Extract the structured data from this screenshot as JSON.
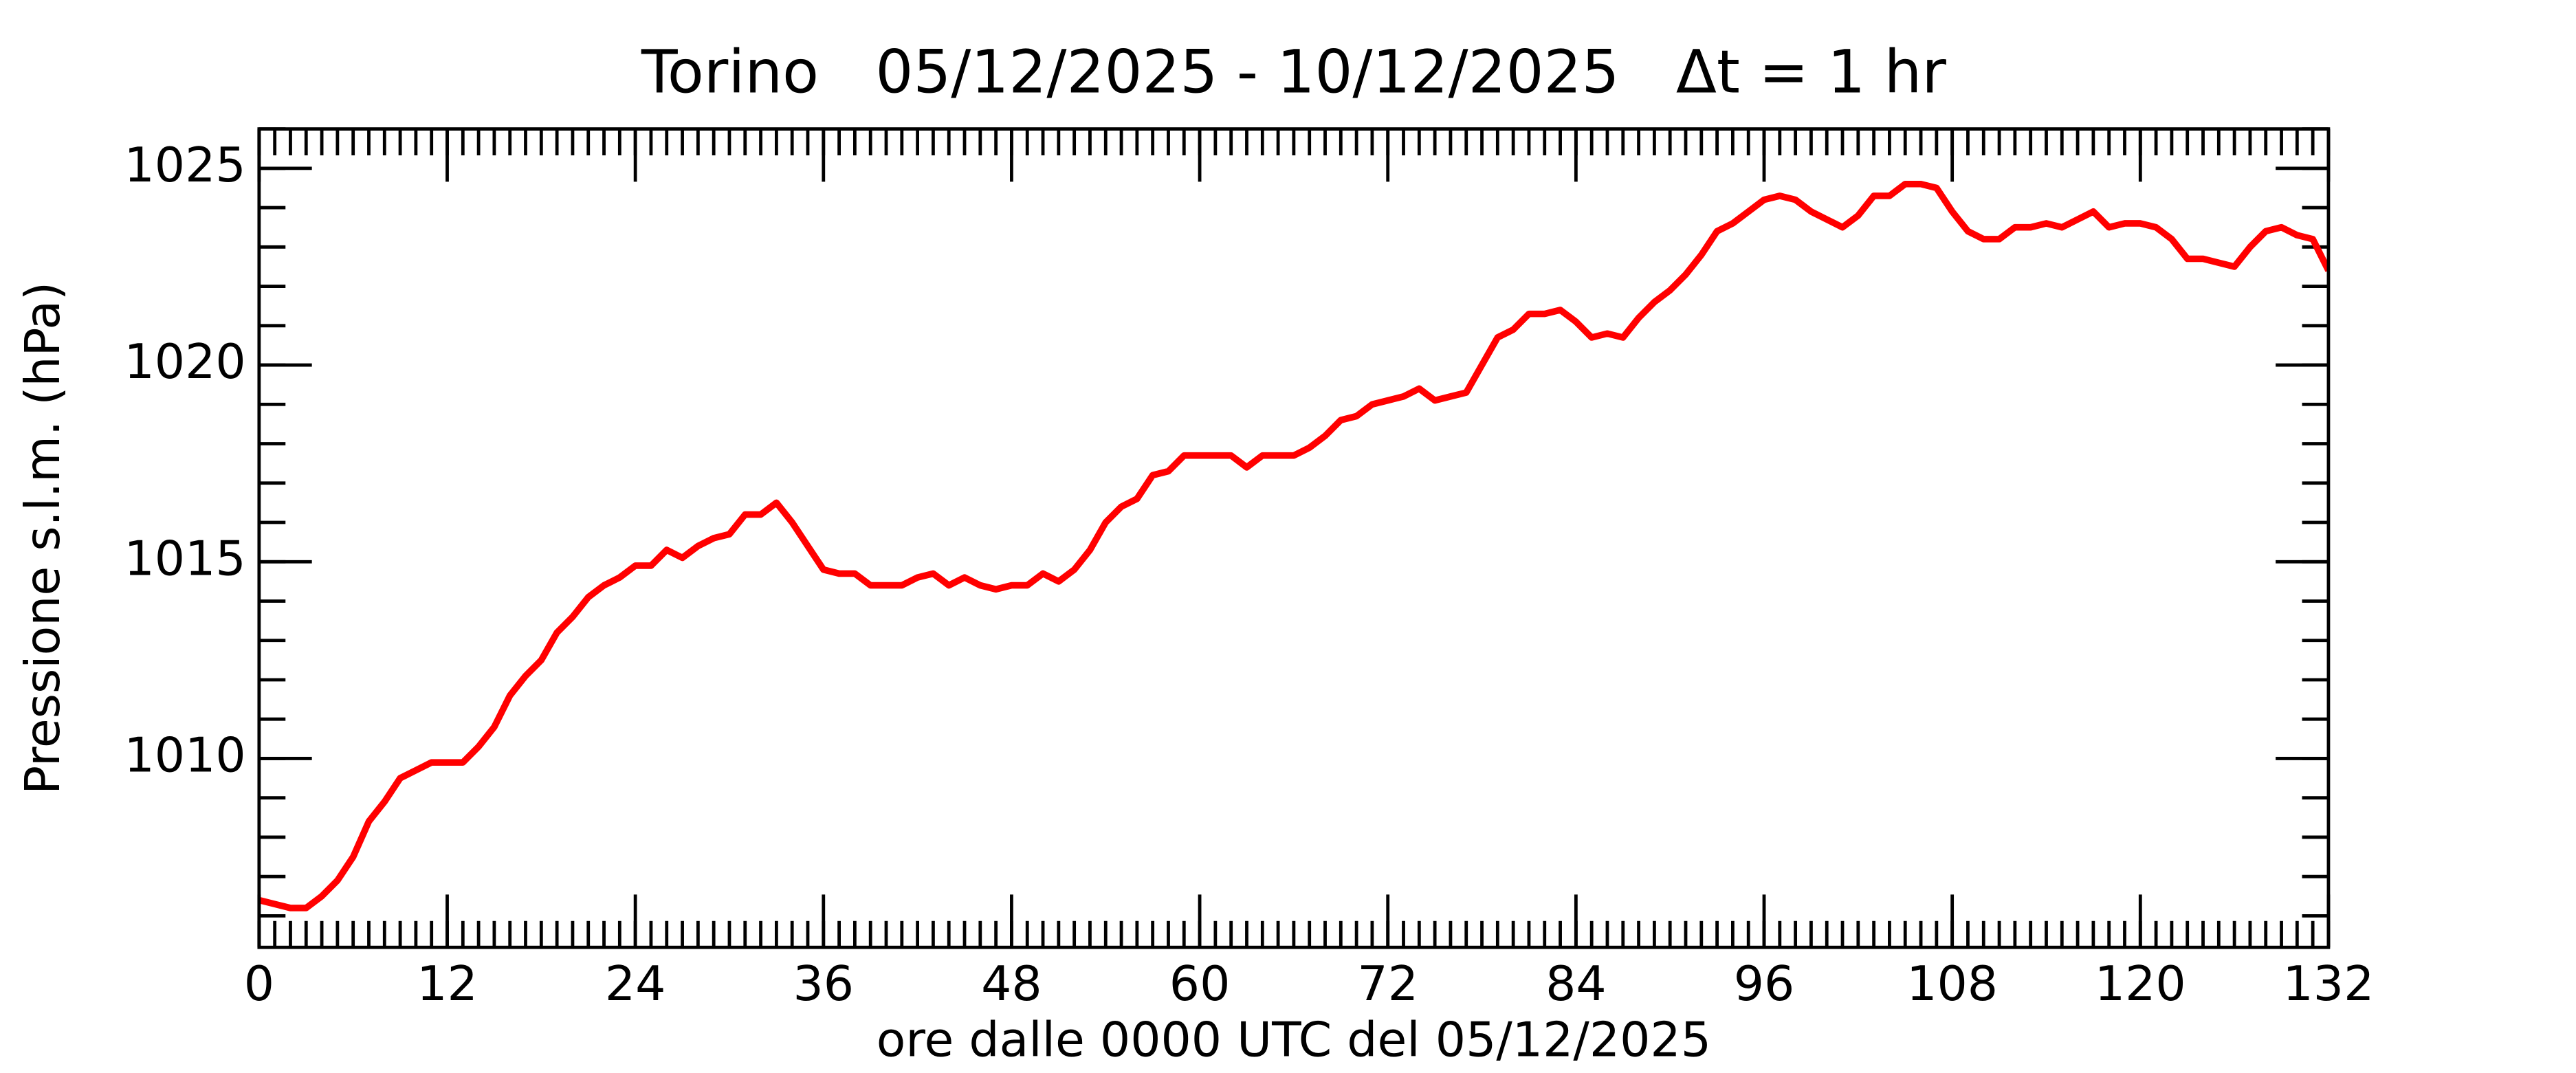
{
  "chart_data": {
    "type": "line",
    "title": "Torino   05/12/2025 - 10/12/2025   Δt = 1 hr",
    "xlabel": "ore dalle 0000 UTC del 05/12/2025",
    "ylabel": "Pressione s.l.m. (hPa)",
    "x": [
      0,
      1,
      2,
      3,
      4,
      5,
      6,
      7,
      8,
      9,
      10,
      11,
      12,
      13,
      14,
      15,
      16,
      17,
      18,
      19,
      20,
      21,
      22,
      23,
      24,
      25,
      26,
      27,
      28,
      29,
      30,
      31,
      32,
      33,
      34,
      35,
      36,
      37,
      38,
      39,
      40,
      41,
      42,
      43,
      44,
      45,
      46,
      47,
      48,
      49,
      50,
      51,
      52,
      53,
      54,
      55,
      56,
      57,
      58,
      59,
      60,
      61,
      62,
      63,
      64,
      65,
      66,
      67,
      68,
      69,
      70,
      71,
      72,
      73,
      74,
      75,
      76,
      77,
      78,
      79,
      80,
      81,
      82,
      83,
      84,
      85,
      86,
      87,
      88,
      89,
      90,
      91,
      92,
      93,
      94,
      95,
      96,
      97,
      98,
      99,
      100,
      101,
      102,
      103,
      104,
      105,
      106,
      107,
      108,
      109,
      110,
      111,
      112,
      113,
      114,
      115,
      116,
      117,
      118,
      119,
      120,
      121,
      122,
      123,
      124,
      125,
      126,
      127,
      128,
      129,
      130,
      131,
      132
    ],
    "series": [
      {
        "name": "Torino",
        "color": "#ff0000",
        "values": [
          1006.4,
          1006.3,
          1006.2,
          1006.2,
          1006.5,
          1006.9,
          1007.5,
          1008.4,
          1008.9,
          1009.5,
          1009.7,
          1009.9,
          1009.9,
          1009.9,
          1010.3,
          1010.8,
          1011.6,
          1012.1,
          1012.5,
          1013.2,
          1013.6,
          1014.1,
          1014.4,
          1014.6,
          1014.9,
          1014.9,
          1015.3,
          1015.1,
          1015.4,
          1015.6,
          1015.7,
          1016.2,
          1016.2,
          1016.5,
          1016.0,
          1015.4,
          1014.8,
          1014.7,
          1014.7,
          1014.4,
          1014.4,
          1014.4,
          1014.6,
          1014.7,
          1014.4,
          1014.6,
          1014.4,
          1014.3,
          1014.4,
          1014.4,
          1014.7,
          1014.5,
          1014.8,
          1015.3,
          1016.0,
          1016.4,
          1016.6,
          1017.2,
          1017.3,
          1017.7,
          1017.7,
          1017.7,
          1017.7,
          1017.4,
          1017.7,
          1017.7,
          1017.7,
          1017.9,
          1018.2,
          1018.6,
          1018.7,
          1019.0,
          1019.1,
          1019.2,
          1019.4,
          1019.1,
          1019.2,
          1019.3,
          1020.0,
          1020.7,
          1020.9,
          1021.3,
          1021.3,
          1021.4,
          1021.1,
          1020.7,
          1020.8,
          1020.7,
          1021.2,
          1021.6,
          1021.9,
          1022.3,
          1022.8,
          1023.4,
          1023.6,
          1023.9,
          1024.2,
          1024.3,
          1024.2,
          1023.9,
          1023.7,
          1023.5,
          1023.8,
          1024.3,
          1024.3,
          1024.6,
          1024.6,
          1024.5,
          1023.9,
          1023.4,
          1023.2,
          1023.2,
          1023.5,
          1023.5,
          1023.6,
          1023.5,
          1023.7,
          1023.9,
          1023.5,
          1023.6,
          1023.6,
          1023.5,
          1023.2,
          1022.7,
          1022.7,
          1022.6,
          1022.5,
          1023.0,
          1023.4,
          1023.5,
          1023.3,
          1023.2,
          1022.4
        ]
      }
    ],
    "xlim": [
      0,
      132
    ],
    "xticks": [
      0,
      12,
      24,
      36,
      48,
      60,
      72,
      84,
      96,
      108,
      120,
      132
    ],
    "ylim": [
      1005.2,
      1026
    ],
    "yticks": [
      1010,
      1015,
      1020,
      1025
    ],
    "grid": false
  }
}
